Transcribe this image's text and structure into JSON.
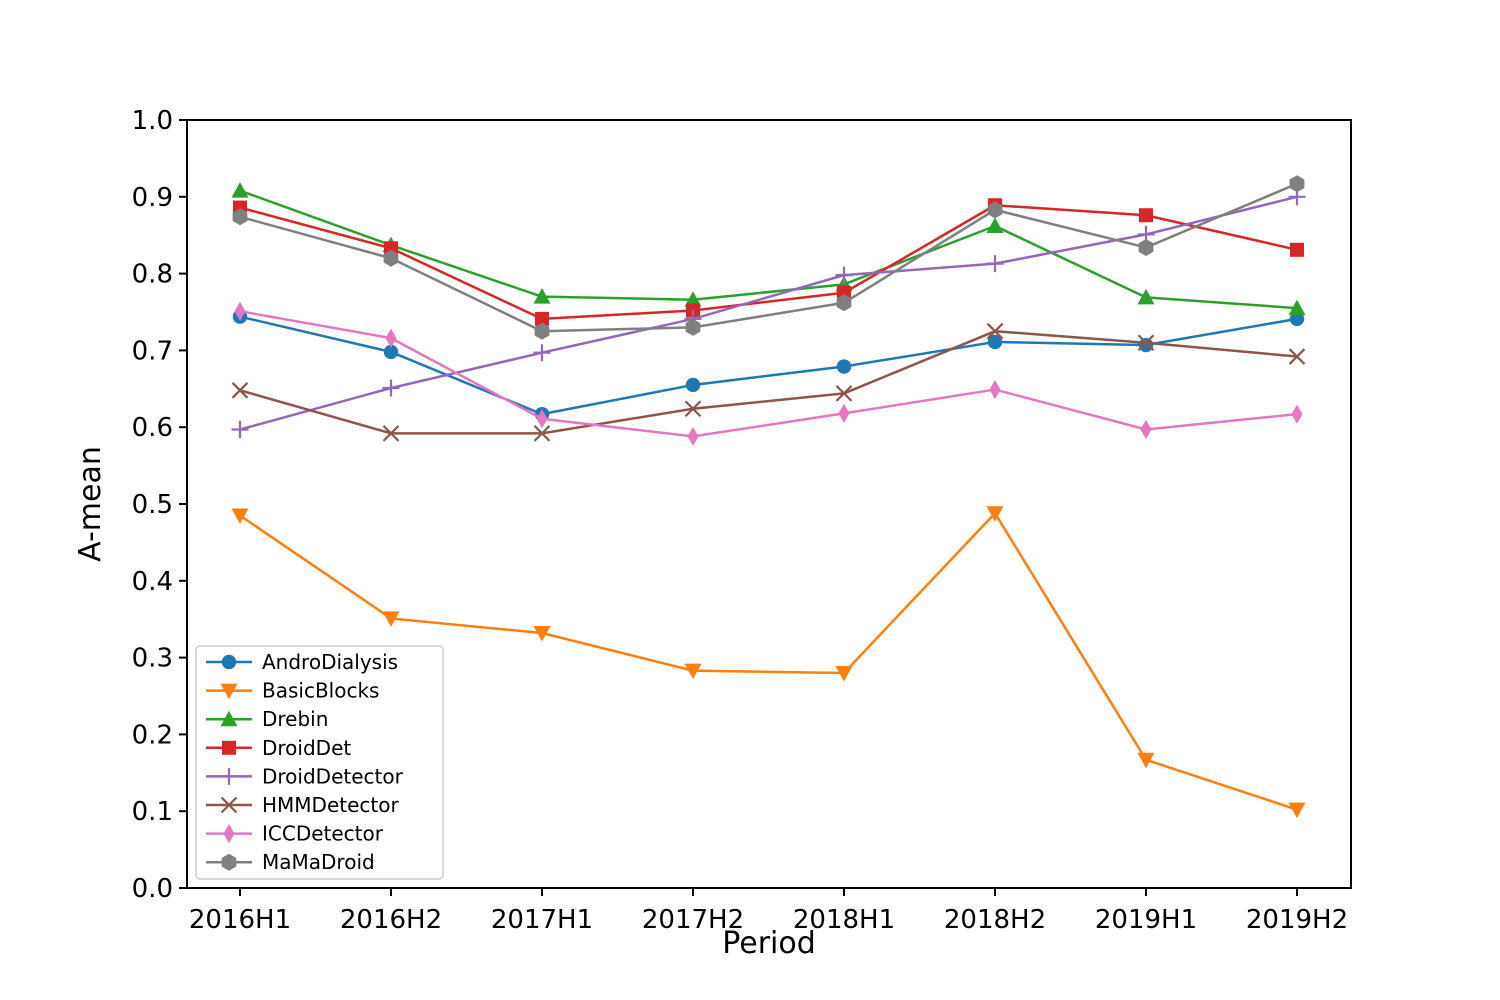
{
  "chart_data": {
    "type": "line",
    "title": "",
    "xlabel": "Period",
    "ylabel": "A-mean",
    "xlim_categories": true,
    "ylim": [
      0.0,
      1.0
    ],
    "yticks": [
      "0.0",
      "0.1",
      "0.2",
      "0.3",
      "0.4",
      "0.5",
      "0.6",
      "0.7",
      "0.8",
      "0.9",
      "1.0"
    ],
    "ytick_values": [
      0.0,
      0.1,
      0.2,
      0.3,
      0.4,
      0.5,
      0.6,
      0.7,
      0.8,
      0.9,
      1.0
    ],
    "categories": [
      "2016H1",
      "2016H2",
      "2017H1",
      "2017H2",
      "2018H1",
      "2018H2",
      "2019H1",
      "2019H2"
    ],
    "grid": "off",
    "legend_position": "lower-left",
    "series": [
      {
        "name": "AndroDialysis",
        "color": "#1f77b4",
        "marker": "circle",
        "values": [
          0.744,
          0.698,
          0.617,
          0.655,
          0.679,
          0.711,
          0.707,
          0.741
        ]
      },
      {
        "name": "BasicBlocks",
        "color": "#ff7f0e",
        "marker": "triangle-down",
        "values": [
          0.485,
          0.351,
          0.332,
          0.283,
          0.28,
          0.488,
          0.167,
          0.102
        ]
      },
      {
        "name": "Drebin",
        "color": "#2ca02c",
        "marker": "triangle-up",
        "values": [
          0.908,
          0.837,
          0.77,
          0.766,
          0.786,
          0.862,
          0.769,
          0.755
        ]
      },
      {
        "name": "DroidDet",
        "color": "#d62728",
        "marker": "square",
        "values": [
          0.886,
          0.833,
          0.741,
          0.752,
          0.775,
          0.889,
          0.876,
          0.831
        ]
      },
      {
        "name": "DroidDetector",
        "color": "#9467bd",
        "marker": "plus",
        "values": [
          0.597,
          0.651,
          0.697,
          0.741,
          0.798,
          0.813,
          0.851,
          0.9
        ]
      },
      {
        "name": "HMMDetector",
        "color": "#8c564b",
        "marker": "x",
        "values": [
          0.648,
          0.592,
          0.592,
          0.624,
          0.644,
          0.725,
          0.71,
          0.692
        ]
      },
      {
        "name": "ICCDetector",
        "color": "#e377c2",
        "marker": "diamond",
        "values": [
          0.751,
          0.716,
          0.611,
          0.588,
          0.618,
          0.649,
          0.597,
          0.617
        ]
      },
      {
        "name": "MaMaDroid",
        "color": "#7f7f7f",
        "marker": "hexagon",
        "values": [
          0.874,
          0.82,
          0.725,
          0.73,
          0.762,
          0.883,
          0.834,
          0.917
        ]
      }
    ]
  }
}
